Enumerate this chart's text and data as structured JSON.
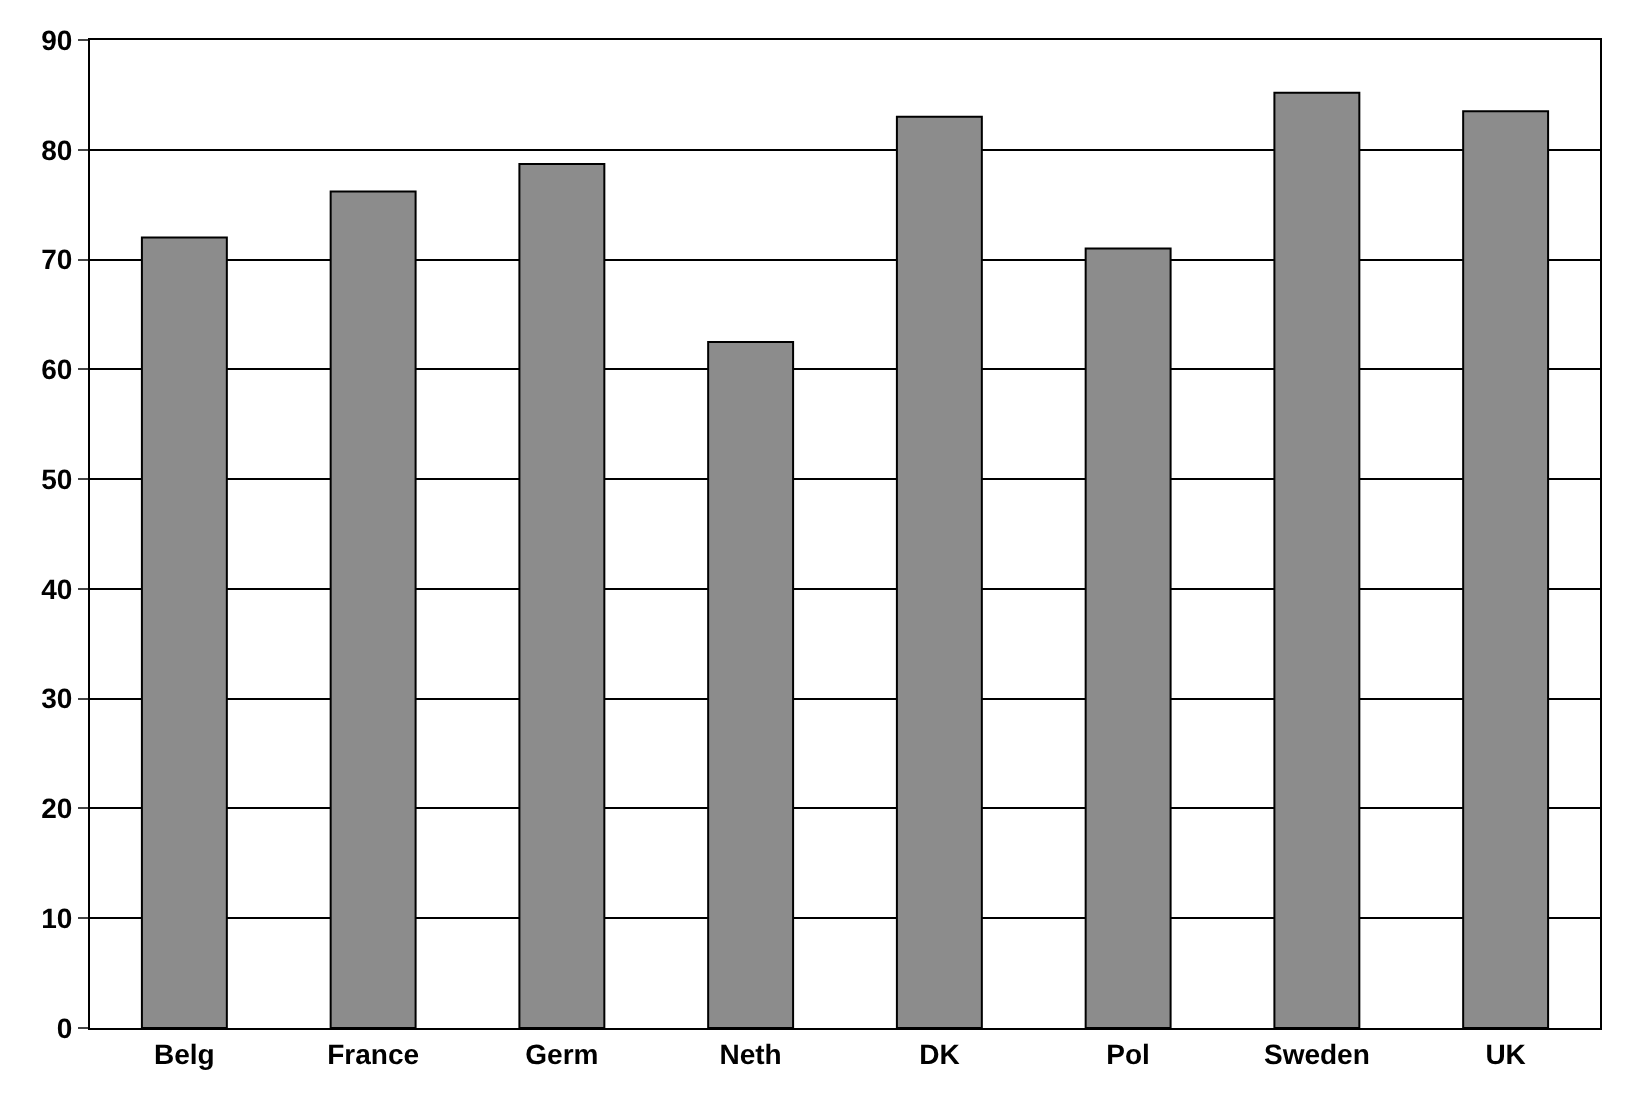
{
  "chart_data": {
    "type": "bar",
    "categories": [
      "Belg",
      "France",
      "Germ",
      "Neth",
      "DK",
      "Pol",
      "Sweden",
      "UK"
    ],
    "values": [
      72,
      76.2,
      78.7,
      62.5,
      83,
      71,
      85.2,
      83.5
    ],
    "color": "#8c8c8c",
    "ylim": [
      0,
      90
    ],
    "yticks": [
      0,
      10,
      20,
      30,
      40,
      50,
      60,
      70,
      80,
      90
    ],
    "grid": "y"
  }
}
